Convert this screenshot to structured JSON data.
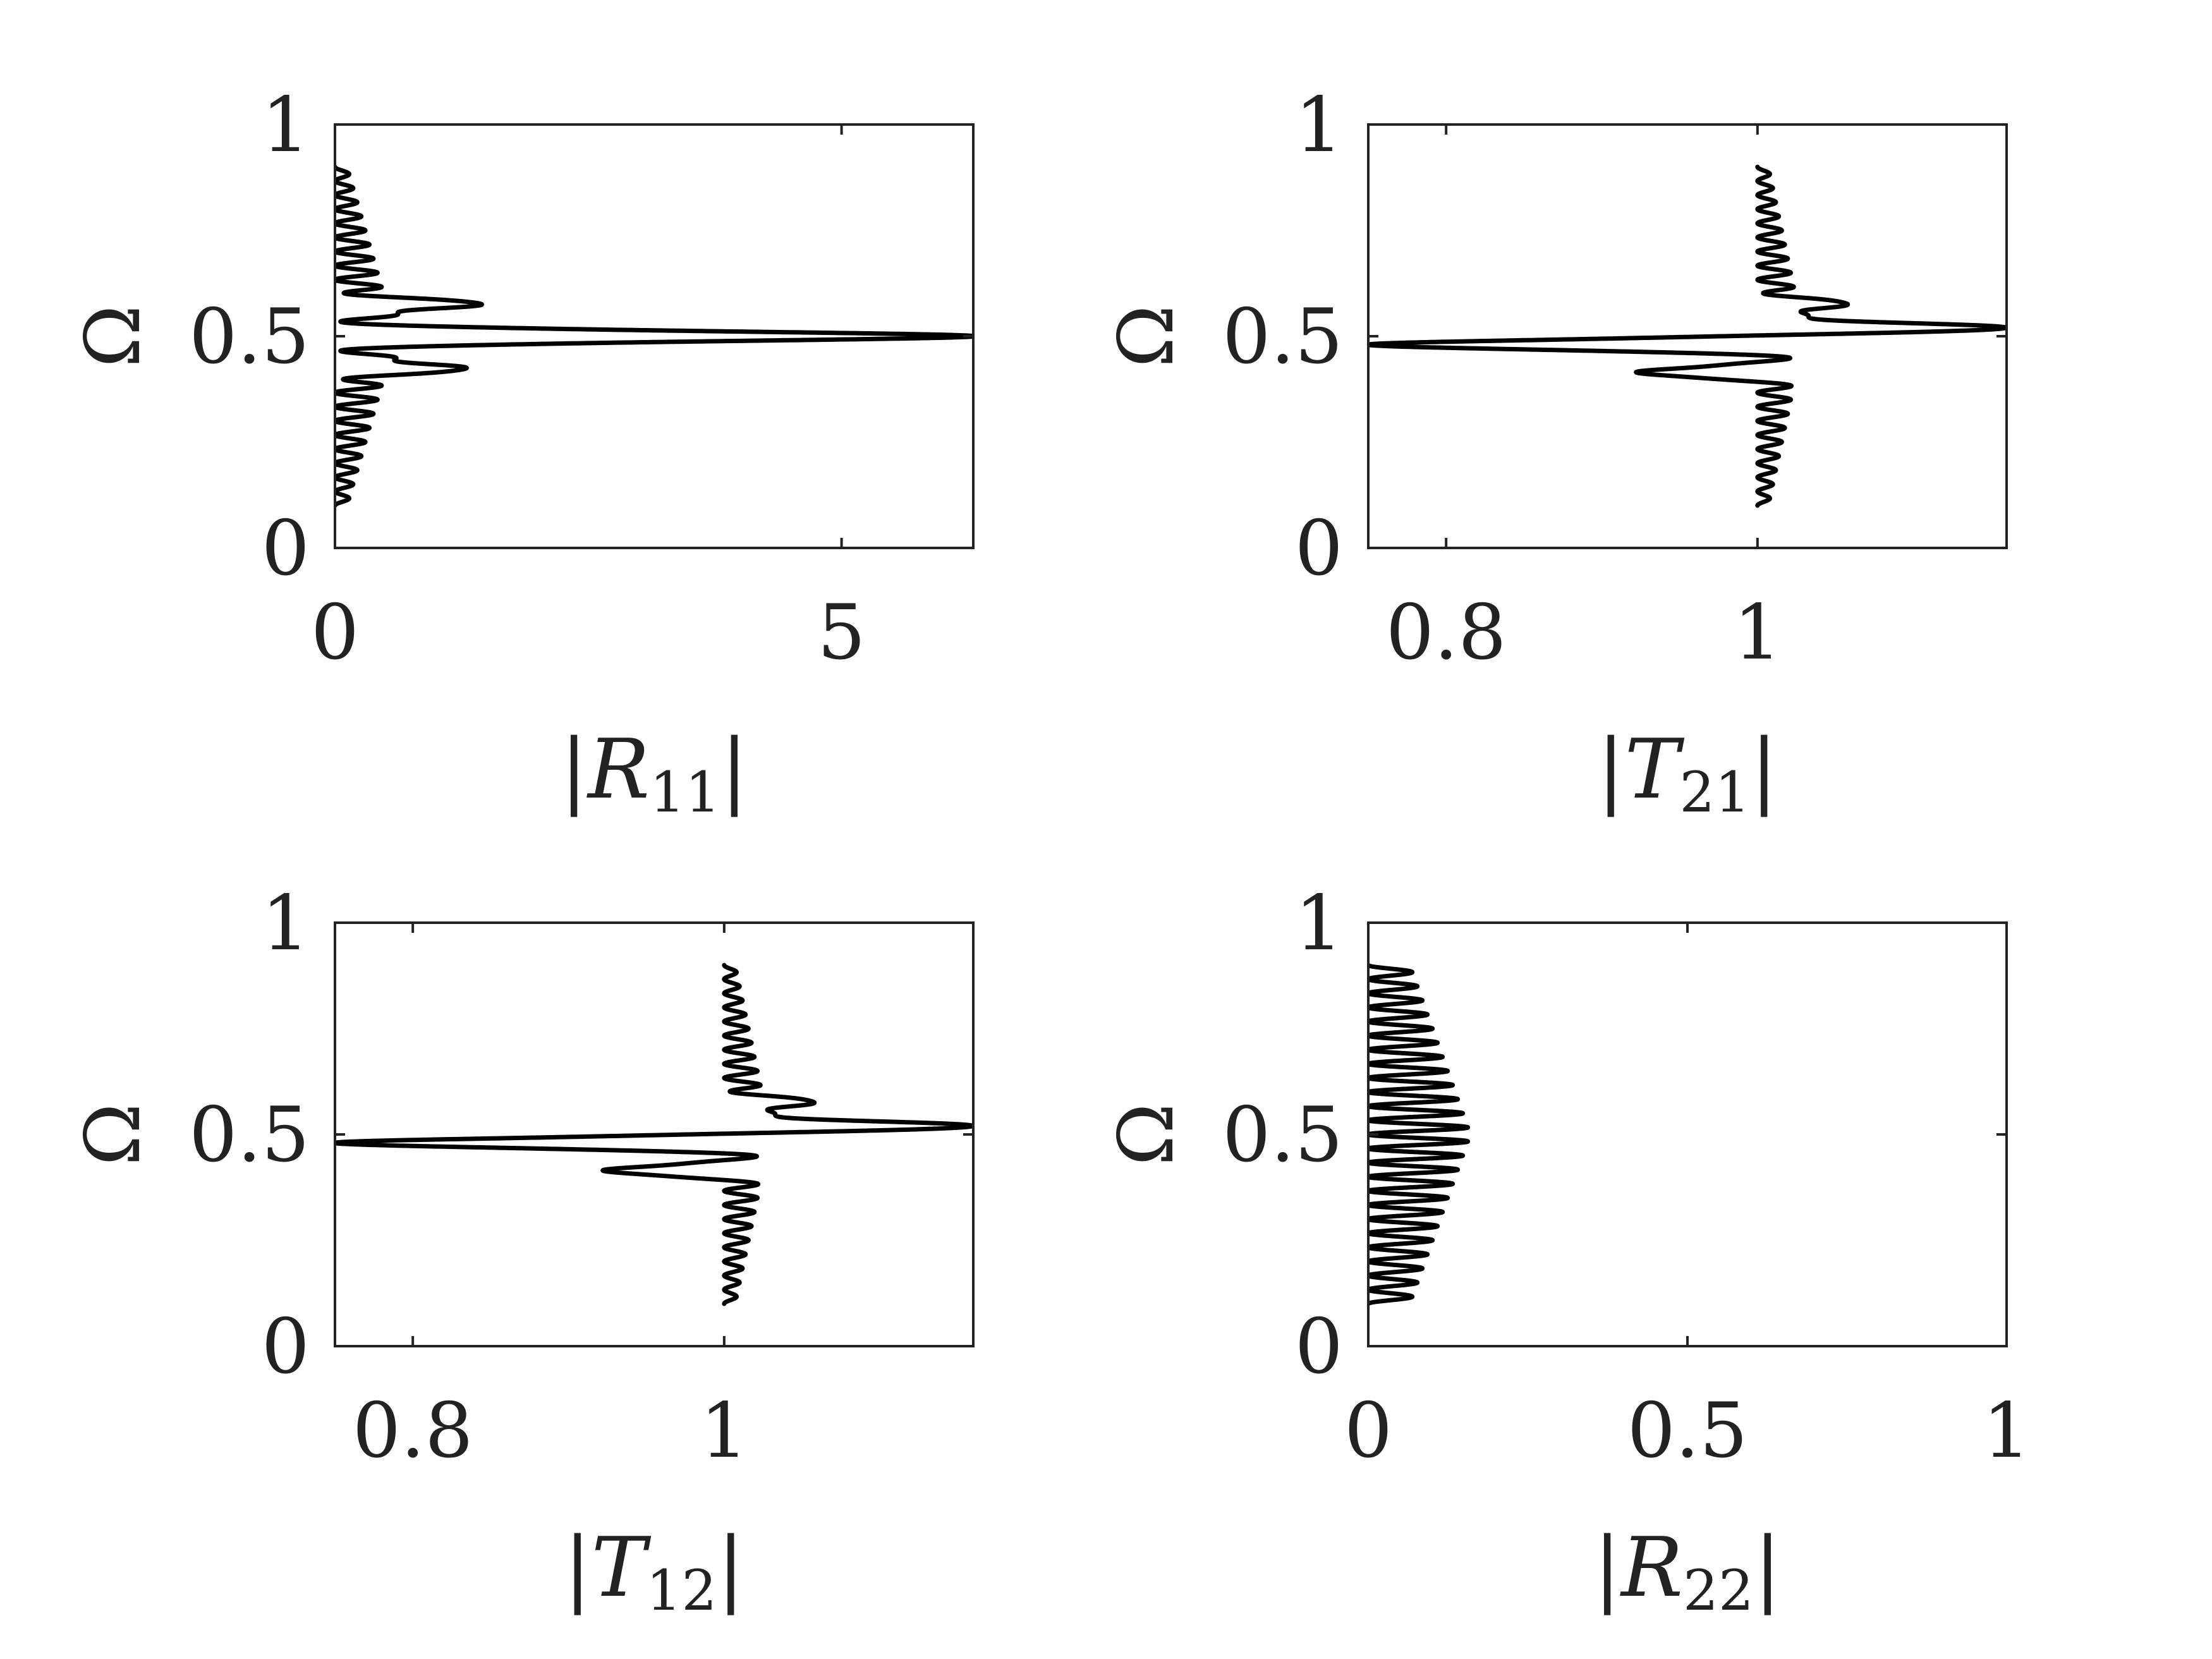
{
  "chart_data": [
    {
      "type": "line",
      "ylabel": "Ω",
      "xlabel": {
        "base": "R",
        "sub": "11"
      },
      "xlim": [
        0,
        6.3
      ],
      "ylim": [
        0,
        1
      ],
      "xticks": [
        0,
        5
      ],
      "xtick_labels": [
        "0",
        "5"
      ],
      "yticks": [
        0,
        0.5,
        1
      ],
      "ytick_labels": [
        "0",
        "0.5",
        "1"
      ],
      "grid": false,
      "curve": {
        "omega_range": [
          0.1,
          0.9
        ],
        "oscillations": 24,
        "baseline": 0,
        "amplitude_min": 0.12,
        "amplitude_max": 0.6,
        "peaks": [
          {
            "omega": 0.5,
            "value": 6.3
          },
          {
            "omega": 0.575,
            "value": 1.45
          },
          {
            "omega": 0.425,
            "value": 1.3
          }
        ]
      }
    },
    {
      "type": "line",
      "ylabel": "Ω",
      "xlabel": {
        "base": "T",
        "sub": "21"
      },
      "xlim": [
        0.75,
        1.16
      ],
      "ylim": [
        0,
        1
      ],
      "xticks": [
        0.8,
        1
      ],
      "xtick_labels": [
        "0.8",
        "1"
      ],
      "yticks": [
        0,
        0.5,
        1
      ],
      "ytick_labels": [
        "0",
        "0.5",
        "1"
      ],
      "grid": false,
      "curve": {
        "omega_range": [
          0.1,
          0.9
        ],
        "oscillations": 24,
        "baseline": 1.0,
        "amplitude_min": 0.007,
        "amplitude_max": 0.03,
        "peaks": [
          {
            "omega": 0.52,
            "value": 1.16
          },
          {
            "omega": 0.48,
            "value": 0.75
          },
          {
            "omega": 0.575,
            "value": 1.058
          },
          {
            "omega": 0.415,
            "value": 0.922
          }
        ]
      }
    },
    {
      "type": "line",
      "ylabel": "Ω",
      "xlabel": {
        "base": "T",
        "sub": "12"
      },
      "xlim": [
        0.75,
        1.16
      ],
      "ylim": [
        0,
        1
      ],
      "xticks": [
        0.8,
        1
      ],
      "xtick_labels": [
        "0.8",
        "1"
      ],
      "yticks": [
        0,
        0.5,
        1
      ],
      "ytick_labels": [
        "0",
        "0.5",
        "1"
      ],
      "grid": false,
      "curve": {
        "omega_range": [
          0.1,
          0.9
        ],
        "oscillations": 24,
        "baseline": 1.0,
        "amplitude_min": 0.007,
        "amplitude_max": 0.03,
        "peaks": [
          {
            "omega": 0.52,
            "value": 1.16
          },
          {
            "omega": 0.48,
            "value": 0.75
          },
          {
            "omega": 0.575,
            "value": 1.058
          },
          {
            "omega": 0.415,
            "value": 0.922
          }
        ]
      }
    },
    {
      "type": "line",
      "ylabel": "Ω",
      "xlabel": {
        "base": "R",
        "sub": "22"
      },
      "xlim": [
        0,
        1
      ],
      "ylim": [
        0,
        1
      ],
      "xticks": [
        0,
        0.5,
        1
      ],
      "xtick_labels": [
        "0",
        "0.5",
        "1"
      ],
      "yticks": [
        0,
        0.5,
        1
      ],
      "ytick_labels": [
        "0",
        "0.5",
        "1"
      ],
      "grid": false,
      "curve": {
        "omega_range": [
          0.1,
          0.9
        ],
        "oscillations": 24,
        "baseline": 0,
        "amplitude_min": 0.065,
        "amplitude_max": 0.16,
        "peaks": []
      }
    }
  ]
}
